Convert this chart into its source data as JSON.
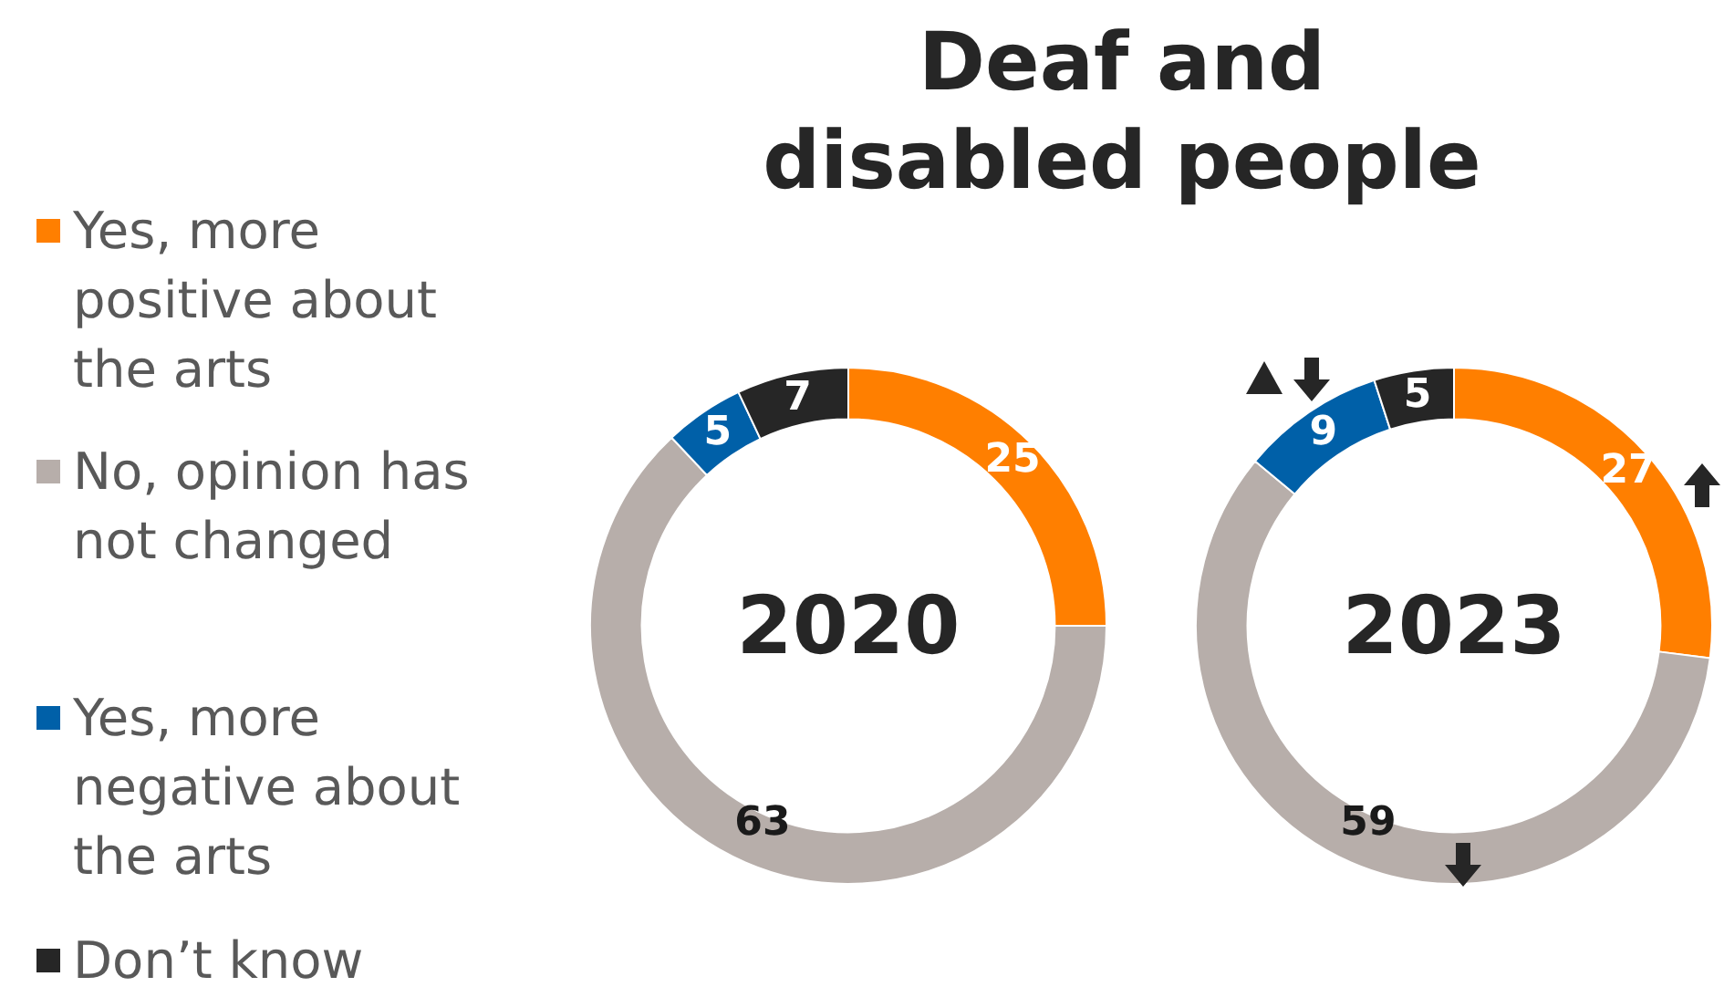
{
  "chart_data": [
    {
      "type": "donut",
      "title": "Deaf and disabled people",
      "annotations": [
        "2020"
      ],
      "categories": [
        "Yes, more positive about the arts",
        "No, opinion has not changed",
        "Yes, more negative about the arts",
        "Don’t know"
      ],
      "values": [
        25,
        63,
        5,
        7
      ],
      "colors": [
        "#ff7f00",
        "#b7aeaa",
        "#0060a8",
        "#262626"
      ],
      "data_labels": true,
      "legend": "left"
    },
    {
      "type": "donut",
      "annotations": [
        "2023"
      ],
      "categories": [
        null,
        null,
        null,
        null
      ],
      "values": [
        27,
        59,
        9,
        5
      ],
      "colors": [
        "#ff7f00",
        "#b7aeaa",
        "#0060a8",
        "#262626"
      ],
      "data_labels": true
    }
  ]
}
